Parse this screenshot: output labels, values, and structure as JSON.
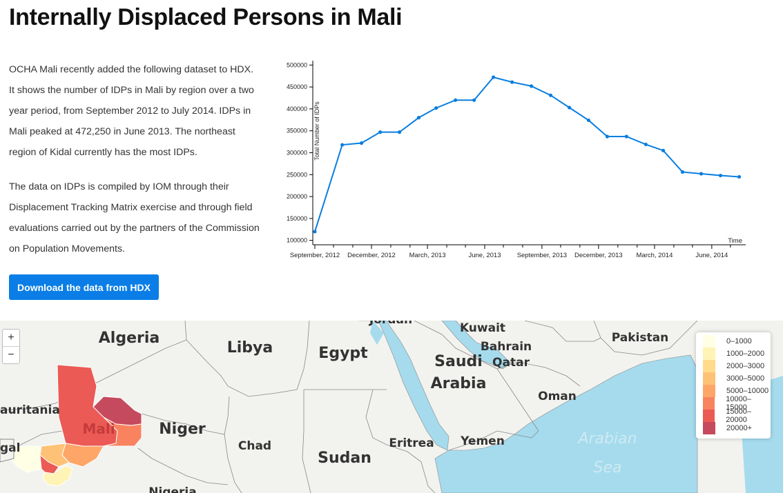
{
  "page": {
    "title": "Internally Displaced Persons in Mali",
    "paragraph1": "OCHA Mali recently added the following dataset to HDX. It shows the number of IDPs in Mali by region over a two year period, from September 2012 to July 2014. IDPs in Mali peaked at 472,250 in June 2013. The northeast region of Kidal currently has the most IDPs.",
    "paragraph2": "The data on IDPs is compiled by IOM through their Displacement Tracking Matrix exercise and through field evaluations carried out by the partners of the Commission on Population Movements.",
    "download_button": "Download the data from HDX"
  },
  "chart_data": {
    "type": "line",
    "ylabel": "Total Number of IDPs",
    "xlabel": "Time",
    "ylim": [
      90000,
      510000
    ],
    "y_ticks": [
      100000,
      150000,
      200000,
      250000,
      300000,
      350000,
      400000,
      450000,
      500000
    ],
    "x_tick_labels": [
      "September, 2012",
      "December, 2012",
      "March, 2013",
      "June, 2013",
      "September, 2013",
      "December, 2013",
      "March, 2014",
      "June, 2014"
    ],
    "series": [
      {
        "color": "#0a7ee0",
        "x": [
          "2012-09-01",
          "2012-10-15",
          "2012-11-15",
          "2012-12-15",
          "2013-01-15",
          "2013-02-15",
          "2013-03-15",
          "2013-04-15",
          "2013-05-15",
          "2013-06-15",
          "2013-07-15",
          "2013-08-15",
          "2013-09-15",
          "2013-10-15",
          "2013-11-15",
          "2013-12-15",
          "2014-01-15",
          "2014-02-15",
          "2014-03-15",
          "2014-04-15",
          "2014-05-15",
          "2014-06-15",
          "2014-07-15"
        ],
        "values": [
          120000,
          318000,
          322000,
          347000,
          347000,
          380000,
          402000,
          420000,
          420000,
          472250,
          461000,
          452000,
          431000,
          403000,
          374000,
          337000,
          337000,
          319000,
          305000,
          256000,
          252000,
          248000,
          245000
        ]
      }
    ]
  },
  "map": {
    "countries": [
      "Algeria",
      "Libya",
      "Egypt",
      "Saudi",
      "Arabia",
      "Kuwait",
      "Bahrain",
      "Qatar",
      "Pakistan",
      "Oman",
      "Niger",
      "Chad",
      "Sudan",
      "Eritrea",
      "Yemen",
      "Nigeria",
      "Mali",
      "auritania",
      "gal",
      "Jordan"
    ],
    "sea_label_1": "Arabian",
    "sea_label_2": "Sea",
    "zoom_in": "+",
    "zoom_out": "−",
    "colors": {
      "land": "#f2f2ef",
      "water": "#a5dbed",
      "border": "#888888"
    },
    "legend": [
      {
        "label": "0–1000",
        "color": "#ffffe5"
      },
      {
        "label": "1000–2000",
        "color": "#fff3b5"
      },
      {
        "label": "2000–3000",
        "color": "#fedc8c"
      },
      {
        "label": "3000–5000",
        "color": "#fec277"
      },
      {
        "label": "5000–10000",
        "color": "#fda668"
      },
      {
        "label": "10000–15000",
        "color": "#f9835f"
      },
      {
        "label": "15000–20000",
        "color": "#eb5a55"
      },
      {
        "label": "20000+",
        "color": "#c64a5e"
      }
    ]
  }
}
